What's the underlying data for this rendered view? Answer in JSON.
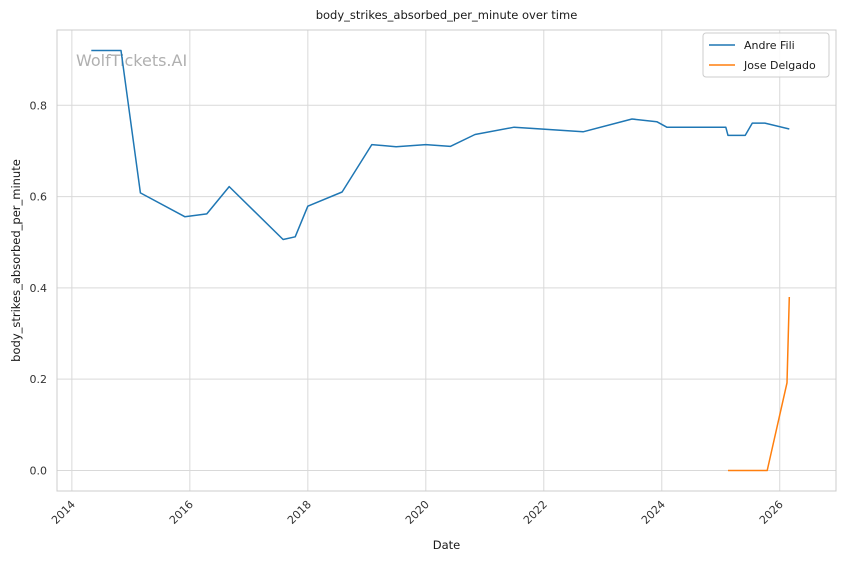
{
  "chart_data": {
    "type": "line",
    "title": "body_strikes_absorbed_per_minute over time",
    "xlabel": "Date",
    "ylabel": "body_strikes_absorbed_per_minute",
    "watermark": "WolfTickets.AI",
    "x_ticks": [
      "2014",
      "2016",
      "2018",
      "2020",
      "2022",
      "2024",
      "2026"
    ],
    "y_ticks": [
      "0.0",
      "0.2",
      "0.4",
      "0.6",
      "0.8"
    ],
    "xlim": [
      "2013-10-01",
      "2026-12-15"
    ],
    "ylim": [
      -0.045,
      0.965
    ],
    "grid": true,
    "legend_position": "top-right",
    "series": [
      {
        "name": "Andre Fili",
        "color": "#1f77b4",
        "points": [
          [
            "2014-05-01",
            0.92
          ],
          [
            "2014-11-01",
            0.92
          ],
          [
            "2015-03-01",
            0.608
          ],
          [
            "2015-12-01",
            0.556
          ],
          [
            "2016-04-15",
            0.562
          ],
          [
            "2016-09-01",
            0.622
          ],
          [
            "2017-08-01",
            0.506
          ],
          [
            "2017-10-15",
            0.512
          ],
          [
            "2018-01-01",
            0.579
          ],
          [
            "2018-08-01",
            0.61
          ],
          [
            "2019-02-01",
            0.714
          ],
          [
            "2019-07-01",
            0.709
          ],
          [
            "2020-01-01",
            0.714
          ],
          [
            "2020-06-01",
            0.71
          ],
          [
            "2020-11-01",
            0.736
          ],
          [
            "2021-07-01",
            0.752
          ],
          [
            "2022-09-01",
            0.742
          ],
          [
            "2023-07-01",
            0.77
          ],
          [
            "2023-12-01",
            0.764
          ],
          [
            "2024-02-01",
            0.752
          ],
          [
            "2025-02-01",
            0.752
          ],
          [
            "2025-02-15",
            0.734
          ],
          [
            "2025-06-01",
            0.734
          ],
          [
            "2025-07-15",
            0.761
          ],
          [
            "2025-10-01",
            0.761
          ],
          [
            "2026-03-01",
            0.748
          ]
        ]
      },
      {
        "name": "Jose Delgado",
        "color": "#ff7f0e",
        "points": [
          [
            "2025-02-15",
            0.0
          ],
          [
            "2025-10-15",
            0.0
          ],
          [
            "2026-02-15",
            0.192
          ],
          [
            "2026-03-01",
            0.38
          ]
        ]
      }
    ]
  }
}
